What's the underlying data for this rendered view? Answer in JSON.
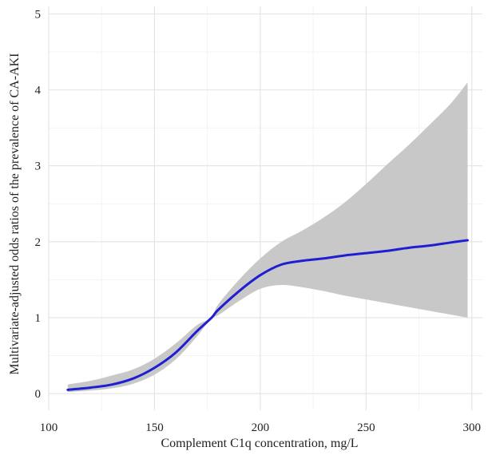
{
  "chart_data": {
    "type": "line",
    "title": "",
    "xlabel": "Complement C1q concentration, mg/L",
    "ylabel": "Multivariate-adjusted odds ratios of the prevalence of CA-AKI",
    "xlim": [
      100,
      305
    ],
    "ylim": [
      -0.22,
      5.1
    ],
    "x_ticks": [
      100,
      150,
      200,
      250,
      300
    ],
    "y_ticks": [
      0,
      1,
      2,
      3,
      4,
      5
    ],
    "x_tick_labels": [
      "100",
      "150",
      "200",
      "250",
      "300"
    ],
    "y_tick_labels": [
      "0",
      "1",
      "2",
      "3",
      "4",
      "5"
    ],
    "grid": true,
    "series": [
      {
        "line_color": "#1f1fd1",
        "band_color": "#c8c8c8",
        "x": [
          109,
          120,
          130,
          140,
          150,
          160,
          170,
          177,
          180,
          190,
          200,
          210,
          220,
          230,
          240,
          250,
          260,
          270,
          280,
          290,
          298
        ],
        "y": [
          0.05,
          0.08,
          0.12,
          0.2,
          0.34,
          0.54,
          0.82,
          1.0,
          1.1,
          1.35,
          1.56,
          1.7,
          1.75,
          1.78,
          1.82,
          1.85,
          1.88,
          1.92,
          1.95,
          1.99,
          2.02
        ],
        "lower": [
          0.02,
          0.04,
          0.07,
          0.13,
          0.25,
          0.45,
          0.75,
          1.0,
          1.03,
          1.22,
          1.38,
          1.43,
          1.4,
          1.35,
          1.29,
          1.24,
          1.19,
          1.14,
          1.09,
          1.04,
          1.0
        ],
        "upper": [
          0.12,
          0.17,
          0.24,
          0.32,
          0.46,
          0.66,
          0.9,
          1.0,
          1.17,
          1.5,
          1.78,
          2.0,
          2.15,
          2.32,
          2.52,
          2.76,
          3.02,
          3.27,
          3.54,
          3.82,
          4.1
        ]
      }
    ]
  }
}
